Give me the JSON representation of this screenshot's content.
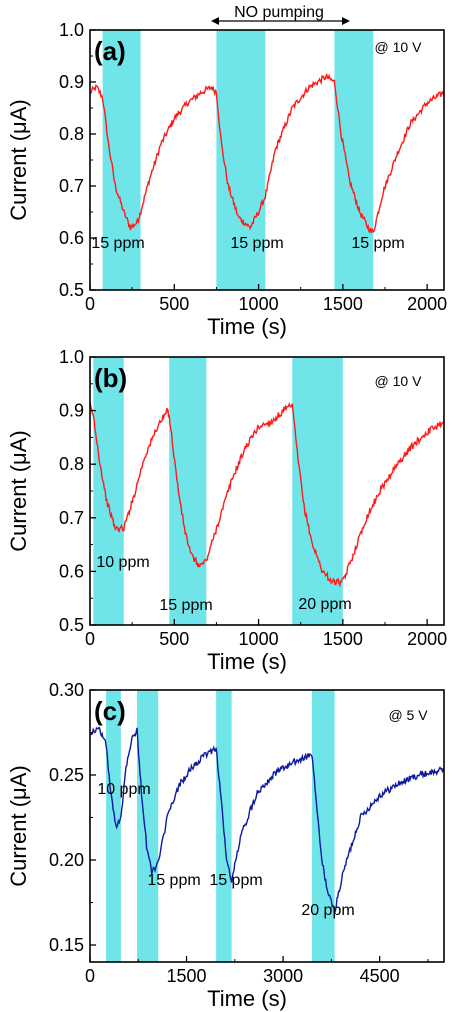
{
  "colors": {
    "pulse_band": "#6fe5ea",
    "red_series": "#ff1a1a",
    "blue_series": "#0d1a9e",
    "axis": "#000000"
  },
  "header_annotation": "NO pumping",
  "chart_data": [
    {
      "type": "line",
      "panel_label": "(a)",
      "condition": "@ 10 V",
      "xlabel": "Time (s)",
      "ylabel": "Current (μA)",
      "xlim": [
        0,
        2100
      ],
      "ylim": [
        0.5,
        1.0
      ],
      "xticks": [
        0,
        500,
        1000,
        1500,
        2000
      ],
      "yticks": [
        0.5,
        0.6,
        0.7,
        0.8,
        0.9,
        1.0
      ],
      "ytick_labels": [
        "0.5",
        "0.6",
        "0.7",
        "0.8",
        "0.9",
        "1.0"
      ],
      "series_color": "red",
      "pulses": [
        [
          75,
          300
        ],
        [
          750,
          1040
        ],
        [
          1450,
          1680
        ]
      ],
      "pulse_labels": [
        "15 ppm",
        "15 ppm",
        "15 ppm"
      ],
      "series": [
        {
          "x": [
            0,
            40,
            75,
            110,
            150,
            200,
            240,
            280,
            300,
            350,
            420,
            500,
            580,
            660,
            720,
            750,
            780,
            820,
            880,
            950,
            1000,
            1040,
            1100,
            1200,
            1300,
            1400,
            1450,
            1490,
            1540,
            1600,
            1650,
            1680,
            1740,
            1820,
            1900,
            2000,
            2100
          ],
          "y": [
            0.88,
            0.89,
            0.87,
            0.78,
            0.7,
            0.65,
            0.62,
            0.63,
            0.65,
            0.71,
            0.78,
            0.83,
            0.86,
            0.88,
            0.89,
            0.88,
            0.78,
            0.7,
            0.64,
            0.62,
            0.65,
            0.68,
            0.77,
            0.85,
            0.89,
            0.91,
            0.9,
            0.8,
            0.71,
            0.65,
            0.62,
            0.61,
            0.69,
            0.76,
            0.82,
            0.86,
            0.88
          ]
        }
      ]
    },
    {
      "type": "line",
      "panel_label": "(b)",
      "condition": "@ 10 V",
      "xlabel": "Time (s)",
      "ylabel": "Current (μA)",
      "xlim": [
        0,
        2100
      ],
      "ylim": [
        0.5,
        1.0
      ],
      "xticks": [
        0,
        500,
        1000,
        1500,
        2000
      ],
      "yticks": [
        0.5,
        0.6,
        0.7,
        0.8,
        0.9,
        1.0
      ],
      "ytick_labels": [
        "0.5",
        "0.6",
        "0.7",
        "0.8",
        "0.9",
        "1.0"
      ],
      "series_color": "red",
      "pulses": [
        [
          20,
          200
        ],
        [
          470,
          690
        ],
        [
          1200,
          1500
        ]
      ],
      "pulse_labels": [
        "10 ppm",
        "15 ppm",
        "20 ppm"
      ],
      "series": [
        {
          "x": [
            0,
            20,
            60,
            100,
            150,
            200,
            260,
            320,
            400,
            460,
            470,
            520,
            560,
            600,
            650,
            690,
            760,
            840,
            920,
            1000,
            1080,
            1150,
            1200,
            1230,
            1270,
            1320,
            1380,
            1440,
            1500,
            1560,
            1640,
            1720,
            1800,
            1900,
            2000,
            2100
          ],
          "y": [
            0.91,
            0.89,
            0.8,
            0.73,
            0.68,
            0.68,
            0.74,
            0.81,
            0.87,
            0.9,
            0.89,
            0.76,
            0.68,
            0.63,
            0.61,
            0.62,
            0.69,
            0.77,
            0.83,
            0.87,
            0.88,
            0.9,
            0.91,
            0.82,
            0.72,
            0.65,
            0.6,
            0.58,
            0.58,
            0.63,
            0.7,
            0.75,
            0.79,
            0.83,
            0.86,
            0.88
          ]
        }
      ]
    },
    {
      "type": "line",
      "panel_label": "(c)",
      "condition": "@ 5 V",
      "xlabel": "Time (s)",
      "ylabel": "Current (μA)",
      "xlim": [
        0,
        5500
      ],
      "ylim": [
        0.14,
        0.3
      ],
      "xticks": [
        0,
        1500,
        3000,
        4500
      ],
      "yticks": [
        0.15,
        0.2,
        0.25,
        0.3
      ],
      "ytick_labels": [
        "0.15",
        "0.20",
        "0.25",
        "0.30"
      ],
      "series_color": "blue",
      "pulses": [
        [
          250,
          480
        ],
        [
          730,
          1060
        ],
        [
          1960,
          2200
        ],
        [
          3450,
          3800
        ]
      ],
      "pulse_labels": [
        "10 ppm",
        "15 ppm",
        "15 ppm",
        "20 ppm"
      ],
      "series": [
        {
          "x": [
            0,
            150,
            250,
            320,
            400,
            480,
            560,
            650,
            730,
            800,
            880,
            960,
            1060,
            1200,
            1400,
            1600,
            1800,
            1960,
            2040,
            2120,
            2200,
            2350,
            2600,
            2900,
            3200,
            3450,
            3520,
            3600,
            3700,
            3800,
            3950,
            4200,
            4500,
            4800,
            5100,
            5500
          ],
          "y": [
            0.275,
            0.277,
            0.268,
            0.24,
            0.22,
            0.225,
            0.255,
            0.272,
            0.276,
            0.24,
            0.208,
            0.193,
            0.198,
            0.225,
            0.245,
            0.255,
            0.262,
            0.266,
            0.235,
            0.2,
            0.188,
            0.215,
            0.24,
            0.252,
            0.258,
            0.262,
            0.232,
            0.2,
            0.18,
            0.17,
            0.195,
            0.225,
            0.238,
            0.245,
            0.25,
            0.253
          ]
        }
      ]
    }
  ]
}
